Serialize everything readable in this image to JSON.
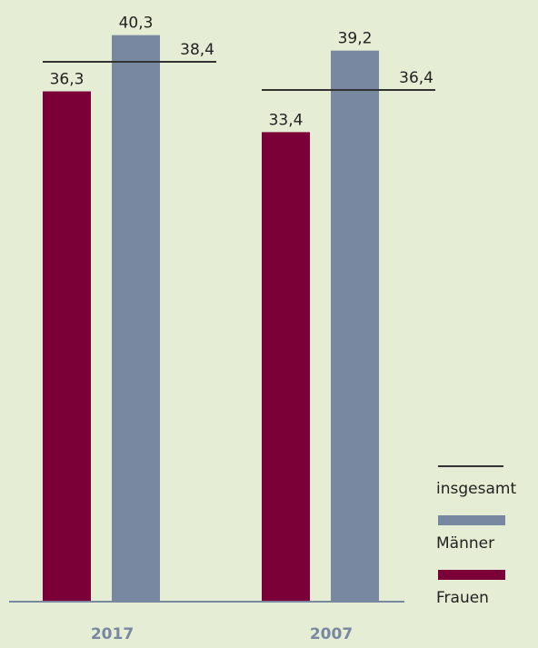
{
  "chart_data": {
    "type": "bar",
    "categories": [
      "2017",
      "2007"
    ],
    "series": [
      {
        "name": "Frauen",
        "color": "#7b0038",
        "values": [
          36.3,
          33.4
        ],
        "value_labels": [
          "36,3",
          "33,4"
        ]
      },
      {
        "name": "Männer",
        "color": "#7788a0",
        "values": [
          40.3,
          39.2
        ],
        "value_labels": [
          "40,3",
          "39,2"
        ]
      },
      {
        "name": "insgesamt",
        "type": "line",
        "color": "#333333",
        "values": [
          38.4,
          36.4
        ],
        "value_labels": [
          "38,4",
          "36,4"
        ]
      }
    ],
    "ylim": [
      0,
      42.8
    ]
  }
}
